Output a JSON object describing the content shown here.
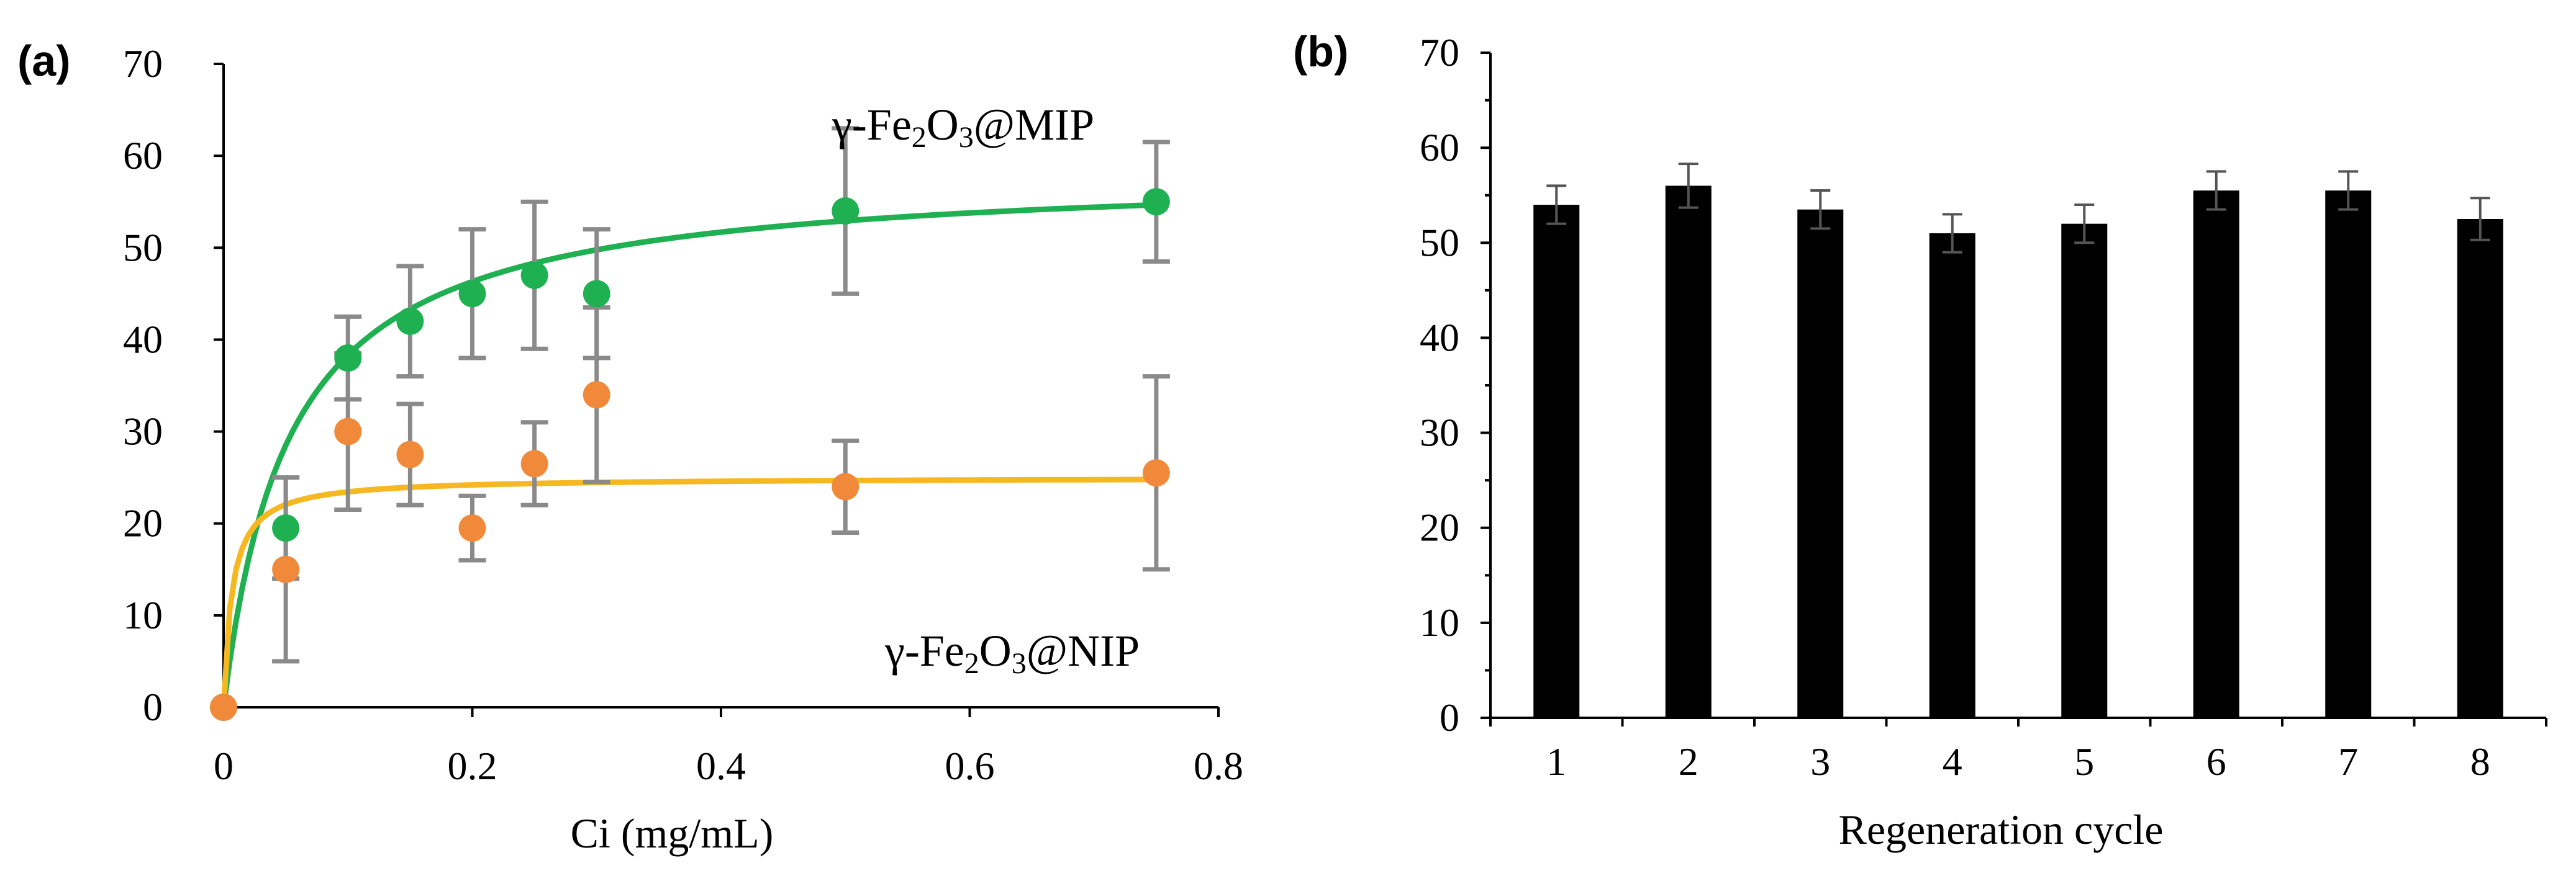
{
  "colors": {
    "mip": "#1fb052",
    "nip": "#f08a3a",
    "nip_curve": "#f5b820",
    "bars": "#000000",
    "error_a": "#8a8a8a",
    "error_b": "#555555"
  },
  "chart_data": [
    {
      "panel_label": "(a)",
      "type": "scatter",
      "xlabel": "Ci (mg/mL)",
      "ylabel": "",
      "xlim": [
        0,
        0.8
      ],
      "ylim": [
        0,
        70
      ],
      "xticks": [
        0,
        0.2,
        0.4,
        0.6,
        0.8
      ],
      "xtick_labels": [
        "0",
        "0.2",
        "0.4",
        "0.6",
        "0.8"
      ],
      "yticks": [
        0,
        10,
        20,
        30,
        40,
        50,
        60,
        70
      ],
      "ytick_labels": [
        "0",
        "10",
        "20",
        "30",
        "40",
        "50",
        "60",
        "70"
      ],
      "grid": false,
      "series": [
        {
          "name": "γ-Fe2O3@MIP",
          "label_parts": [
            "γ-Fe",
            "2",
            "O",
            "3",
            "@MIP"
          ],
          "color_key": "mip",
          "x": [
            0,
            0.05,
            0.1,
            0.15,
            0.2,
            0.25,
            0.3,
            0.5,
            0.75
          ],
          "y": [
            0,
            19.5,
            38,
            42,
            45,
            47,
            45,
            54,
            55
          ],
          "error": [
            0,
            5.5,
            4.5,
            6,
            7,
            8,
            7,
            9,
            6.5
          ],
          "fit": {
            "model": "langmuir",
            "qmax": 58.5,
            "K": 19
          }
        },
        {
          "name": "γ-Fe2O3@NIP",
          "label_parts": [
            "γ-Fe",
            "2",
            "O",
            "3",
            "@NIP"
          ],
          "color_key": "nip",
          "curve_color_key": "nip_curve",
          "x": [
            0,
            0.05,
            0.1,
            0.15,
            0.2,
            0.25,
            0.3,
            0.5,
            0.75
          ],
          "y": [
            0,
            15,
            30,
            27.5,
            19.5,
            26.5,
            34,
            24,
            25.5
          ],
          "error": [
            0,
            10,
            8.5,
            5.5,
            3.5,
            4.5,
            9.5,
            5,
            10.5
          ],
          "fit": {
            "model": "langmuir",
            "qmax": 25,
            "K": 150
          }
        }
      ]
    },
    {
      "panel_label": "(b)",
      "type": "bar",
      "xlabel": "Regeneration cycle",
      "ylabel": "",
      "ylim": [
        0,
        70
      ],
      "yticks": [
        0,
        10,
        20,
        30,
        40,
        50,
        60,
        70
      ],
      "ytick_labels": [
        "0",
        "10",
        "20",
        "30",
        "40",
        "50",
        "60",
        "70"
      ],
      "grid": false,
      "categories": [
        "1",
        "2",
        "3",
        "4",
        "5",
        "6",
        "7",
        "8"
      ],
      "values": [
        54,
        56,
        53.5,
        51,
        52,
        55.5,
        55.5,
        52.5
      ],
      "error": [
        2,
        2.3,
        2,
        2,
        2,
        2,
        2,
        2.2
      ]
    }
  ]
}
